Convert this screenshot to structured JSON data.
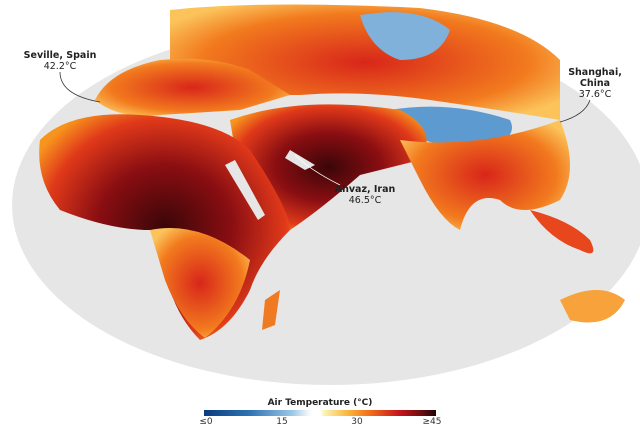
{
  "annotations": [
    {
      "city": "Seville, Spain",
      "temp": "42.2°C"
    },
    {
      "city": "Shanghai, China",
      "temp": "37.6°C"
    },
    {
      "city": "Ahvaz, Iran",
      "temp": "46.5°C"
    }
  ],
  "legend": {
    "title": "Air Temperature (°C)",
    "ticks": [
      "≤0",
      "15",
      "30",
      "≥45"
    ],
    "colors": {
      "cold": "#0b3b7d",
      "mid": "#f4f7fa",
      "warm": "#fbb63c",
      "hot": "#c8141c",
      "hottest": "#1a0506"
    }
  }
}
